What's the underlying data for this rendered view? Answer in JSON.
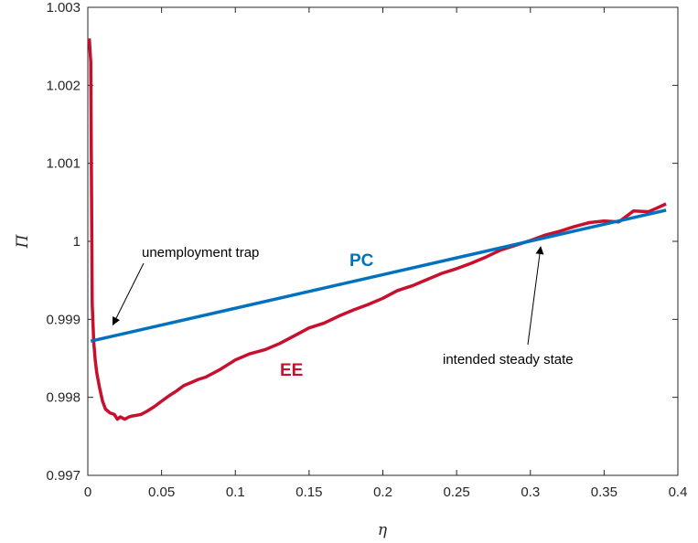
{
  "chart_data": {
    "type": "line",
    "title": "",
    "xlabel": "η",
    "ylabel": "Π",
    "xlim": [
      0,
      0.4
    ],
    "ylim": [
      0.997,
      1.003
    ],
    "x_ticks": [
      0,
      0.05,
      0.1,
      0.15,
      0.2,
      0.25,
      0.3,
      0.35,
      0.4
    ],
    "x_tick_labels": [
      "0",
      "0.05",
      "0.1",
      "0.15",
      "0.2",
      "0.25",
      "0.3",
      "0.35",
      "0.4"
    ],
    "y_ticks": [
      0.997,
      0.998,
      0.999,
      1.0,
      1.001,
      1.002,
      1.003
    ],
    "y_tick_labels": [
      "0.997",
      "0.998",
      "0.999",
      "1",
      "1.001",
      "1.002",
      "1.003"
    ],
    "grid": false,
    "series": [
      {
        "name": "PC",
        "color": "#0072BD",
        "x": [
          0.002,
          0.392
        ],
        "y": [
          0.99872,
          1.0004
        ]
      },
      {
        "name": "EE",
        "color": "#C8102E",
        "x": [
          0.001,
          0.002,
          0.003,
          0.004,
          0.005,
          0.006,
          0.008,
          0.01,
          0.012,
          0.015,
          0.018,
          0.02,
          0.022,
          0.025,
          0.028,
          0.03,
          0.033,
          0.036,
          0.04,
          0.045,
          0.05,
          0.055,
          0.06,
          0.065,
          0.07,
          0.075,
          0.08,
          0.085,
          0.09,
          0.095,
          0.1,
          0.11,
          0.12,
          0.13,
          0.14,
          0.15,
          0.16,
          0.17,
          0.18,
          0.19,
          0.2,
          0.21,
          0.22,
          0.23,
          0.24,
          0.25,
          0.26,
          0.27,
          0.28,
          0.29,
          0.3,
          0.31,
          0.32,
          0.33,
          0.34,
          0.35,
          0.36,
          0.365,
          0.37,
          0.38,
          0.385,
          0.392
        ],
        "y": [
          1.0026,
          1.0023,
          0.9992,
          0.9987,
          0.99848,
          0.99832,
          0.99812,
          0.99795,
          0.99785,
          0.9978,
          0.99778,
          0.99772,
          0.99775,
          0.99772,
          0.99775,
          0.99776,
          0.99777,
          0.99778,
          0.99782,
          0.99788,
          0.99795,
          0.99802,
          0.99808,
          0.99815,
          0.99819,
          0.99823,
          0.99826,
          0.99831,
          0.99836,
          0.99842,
          0.99848,
          0.99856,
          0.99861,
          0.99869,
          0.99879,
          0.99889,
          0.99895,
          0.99904,
          0.99912,
          0.99919,
          0.99927,
          0.99937,
          0.99943,
          0.99951,
          0.99959,
          0.99965,
          0.99972,
          0.9998,
          0.99989,
          0.99995,
          1.00001,
          1.00008,
          1.00013,
          1.00019,
          1.00024,
          1.00026,
          1.00025,
          1.00032,
          1.00039,
          1.00038,
          1.00042,
          1.00048
        ]
      }
    ],
    "annotations": [
      {
        "id": "pc-label",
        "text": "PC",
        "color": "#0072BD"
      },
      {
        "id": "ee-label",
        "text": "EE",
        "color": "#C8102E"
      },
      {
        "id": "trap",
        "text": "unemployment trap",
        "arrow_to": {
          "x": 0.017,
          "y": 0.99893
        }
      },
      {
        "id": "steady",
        "text": "intended steady state",
        "arrow_to": {
          "x": 0.307,
          "y": 0.99993
        }
      }
    ]
  }
}
